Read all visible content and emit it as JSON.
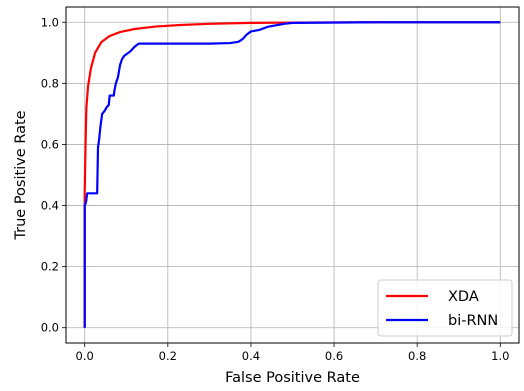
{
  "chart_data": {
    "type": "line",
    "title": "",
    "xlabel": "False Positive Rate",
    "ylabel": "True Positive Rate",
    "xlim": [
      -0.045,
      1.045
    ],
    "ylim": [
      -0.05,
      1.05
    ],
    "grid": true,
    "legend_position": "lower-right",
    "x_ticks": [
      {
        "value": 0.0,
        "label": "0.0"
      },
      {
        "value": 0.2,
        "label": "0.2"
      },
      {
        "value": 0.4,
        "label": "0.4"
      },
      {
        "value": 0.6,
        "label": "0.6"
      },
      {
        "value": 0.8,
        "label": "0.8"
      },
      {
        "value": 1.0,
        "label": "1.0"
      }
    ],
    "y_ticks": [
      {
        "value": 0.0,
        "label": "0.0"
      },
      {
        "value": 0.2,
        "label": "0.2"
      },
      {
        "value": 0.4,
        "label": "0.4"
      },
      {
        "value": 0.6,
        "label": "0.6"
      },
      {
        "value": 0.8,
        "label": "0.8"
      },
      {
        "value": 1.0,
        "label": "1.0"
      }
    ],
    "series": [
      {
        "name": "XDA",
        "color": "#ff0000",
        "points": [
          [
            0.0,
            0.0
          ],
          [
            0.0,
            0.44
          ],
          [
            0.002,
            0.6
          ],
          [
            0.004,
            0.72
          ],
          [
            0.008,
            0.79
          ],
          [
            0.015,
            0.85
          ],
          [
            0.025,
            0.9
          ],
          [
            0.04,
            0.935
          ],
          [
            0.06,
            0.955
          ],
          [
            0.085,
            0.968
          ],
          [
            0.12,
            0.978
          ],
          [
            0.17,
            0.986
          ],
          [
            0.23,
            0.991
          ],
          [
            0.3,
            0.995
          ],
          [
            0.4,
            0.998
          ],
          [
            0.5,
            0.999
          ],
          [
            0.7,
            1.0
          ],
          [
            1.0,
            1.0
          ]
        ]
      },
      {
        "name": "bi-RNN",
        "color": "#0000ff",
        "points": [
          [
            0.0,
            0.0
          ],
          [
            0.0,
            0.4
          ],
          [
            0.003,
            0.41
          ],
          [
            0.006,
            0.44
          ],
          [
            0.03,
            0.44
          ],
          [
            0.032,
            0.59
          ],
          [
            0.035,
            0.62
          ],
          [
            0.038,
            0.66
          ],
          [
            0.042,
            0.7
          ],
          [
            0.048,
            0.71
          ],
          [
            0.052,
            0.72
          ],
          [
            0.058,
            0.73
          ],
          [
            0.06,
            0.76
          ],
          [
            0.07,
            0.76
          ],
          [
            0.072,
            0.78
          ],
          [
            0.075,
            0.8
          ],
          [
            0.08,
            0.82
          ],
          [
            0.085,
            0.86
          ],
          [
            0.09,
            0.88
          ],
          [
            0.095,
            0.89
          ],
          [
            0.1,
            0.895
          ],
          [
            0.11,
            0.905
          ],
          [
            0.12,
            0.92
          ],
          [
            0.13,
            0.93
          ],
          [
            0.2,
            0.93
          ],
          [
            0.3,
            0.93
          ],
          [
            0.35,
            0.932
          ],
          [
            0.37,
            0.936
          ],
          [
            0.38,
            0.945
          ],
          [
            0.39,
            0.96
          ],
          [
            0.4,
            0.97
          ],
          [
            0.42,
            0.975
          ],
          [
            0.44,
            0.985
          ],
          [
            0.46,
            0.99
          ],
          [
            0.48,
            0.995
          ],
          [
            0.5,
            0.998
          ],
          [
            0.7,
            1.0
          ],
          [
            1.0,
            1.0
          ]
        ]
      }
    ]
  }
}
